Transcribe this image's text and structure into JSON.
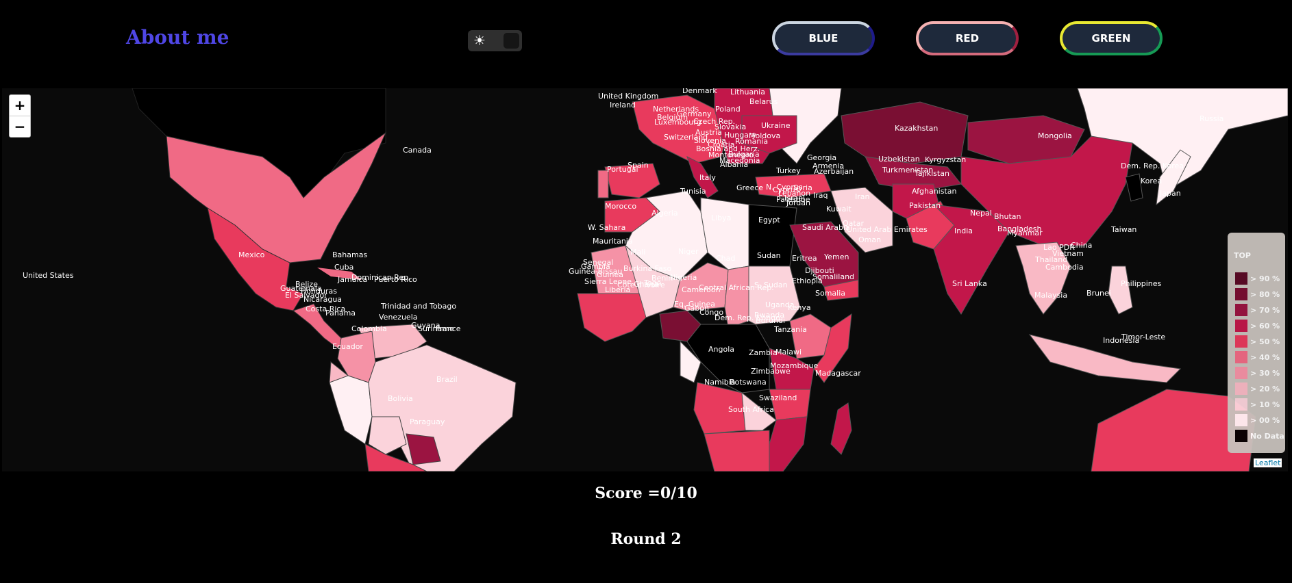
{
  "header": {
    "about_label": "About me",
    "theme_toggle_icon": "sun-icon",
    "buttons": [
      {
        "label": "BLUE"
      },
      {
        "label": "RED"
      },
      {
        "label": "GREEN"
      }
    ]
  },
  "map": {
    "zoom_in": "+",
    "zoom_out": "−",
    "attribution": "Leaflet",
    "legend": {
      "title": "TOP",
      "items": [
        {
          "label": "> 90 %",
          "color": "#5b0a26"
        },
        {
          "label": "> 80 %",
          "color": "#7a0f33"
        },
        {
          "label": "> 70 %",
          "color": "#9b1441"
        },
        {
          "label": "> 60 %",
          "color": "#c2174a"
        },
        {
          "label": "> 50 %",
          "color": "#e83a5d"
        },
        {
          "label": "> 40 %",
          "color": "#f06a85"
        },
        {
          "label": "> 30 %",
          "color": "#f592a6"
        },
        {
          "label": "> 20 %",
          "color": "#f9b9c5"
        },
        {
          "label": "> 10 %",
          "color": "#fbd3db"
        },
        {
          "label": "> 00 %",
          "color": "#fff0f3"
        },
        {
          "label": "No Data",
          "color": "#000000"
        }
      ]
    },
    "country_labels": [
      "Canada",
      "United States",
      "Mexico",
      "Bahamas",
      "Cuba",
      "Jamaica",
      "Dominican Rep.",
      "Puerto Rico",
      "Belize",
      "Guatemala",
      "El Salvador",
      "Honduras",
      "Nicaragua",
      "Costa Rica",
      "Panama",
      "Trinidad and Tobago",
      "Venezuela",
      "Guyana",
      "Suriname",
      "France",
      "Colombia",
      "Ecuador",
      "Brazil",
      "Bolivia",
      "Paraguay",
      "United Kingdom",
      "Ireland",
      "Denmark",
      "Lithuania",
      "Belarus",
      "Netherlands",
      "Germany",
      "Belgium",
      "Luxembourg",
      "Poland",
      "Czech Rep.",
      "Slovakia",
      "Austria",
      "Hungary",
      "Switzerland",
      "Slovenia",
      "Croatia",
      "Bosnia and Herz.",
      "Montenegro",
      "Macedonia",
      "Albania",
      "Ukraine",
      "Moldova",
      "Romania",
      "Bulgaria",
      "Portugal",
      "Spain",
      "Italy",
      "Greece",
      "Turkey",
      "Georgia",
      "Armenia",
      "Azerbaijan",
      "N. Cyprus",
      "Cyprus",
      "Syria",
      "Lebanon",
      "Israel",
      "Palestine",
      "Jordan",
      "Iraq",
      "Iran",
      "Kuwait",
      "Qatar",
      "United Arab Emirates",
      "Saudi Arabia",
      "Oman",
      "Yemen",
      "Kazakhstan",
      "Mongolia",
      "Uzbekistan",
      "Kyrgyzstan",
      "Turkmenistan",
      "Tajikistan",
      "Afghanistan",
      "Pakistan",
      "India",
      "Nepal",
      "Bhutan",
      "Bangladesh",
      "Sri Lanka",
      "China",
      "Dem. Rep. Korea",
      "Korea",
      "Japan",
      "Russia",
      "Taiwan",
      "Lao PDR",
      "Vietnam",
      "Thailand",
      "Cambodia",
      "Myanmar",
      "Philippines",
      "Malaysia",
      "Brunei",
      "Indonesia",
      "Timor-Leste",
      "Tunisia",
      "Morocco",
      "Algeria",
      "Libya",
      "Egypt",
      "W. Sahara",
      "Mauritania",
      "Mali",
      "Niger",
      "Chad",
      "Sudan",
      "Eritrea",
      "Djibouti",
      "Somaliland",
      "Somalia",
      "Ethiopia",
      "S. Sudan",
      "Central African Rep.",
      "Senegal",
      "Gambia",
      "Guinea-Bissau",
      "Guinea",
      "Sierra Leone",
      "Liberia",
      "Côte d'Ivoire",
      "Ghana",
      "Togo",
      "Benin",
      "Burkina Faso",
      "Nigeria",
      "Cameroon",
      "Eq. Guinea",
      "Gabon",
      "Congo",
      "Dem. Rep. Congo",
      "Uganda",
      "Rwanda",
      "Burundi",
      "Kenya",
      "Tanzania",
      "Angola",
      "Zambia",
      "Malawi",
      "Mozambique",
      "Zimbabwe",
      "Namibia",
      "Botswana",
      "Swaziland",
      "Madagascar",
      "South Africa"
    ]
  },
  "game": {
    "score": "Score =0/10",
    "round": "Round 2"
  }
}
